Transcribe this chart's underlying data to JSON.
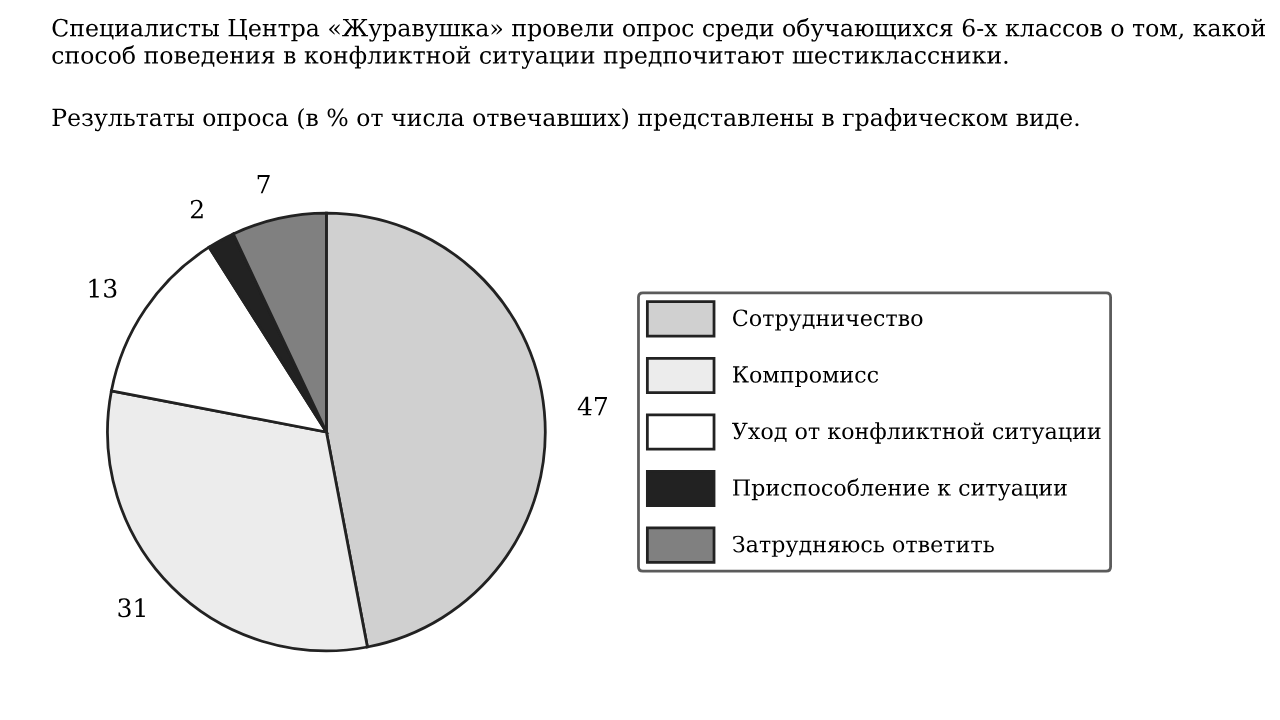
{
  "chart_data": {
    "type": "pie",
    "title": "Специалисты Центра «Журавушка» провели опрос среди обучающихся 6-х классов о том, какой способ поведения в конфликтной ситуации предпочитают шестиклассники.",
    "subtitle": "Результаты опроса (в % от числа отвечавших) представлены в графическом виде.",
    "categories": [
      "Сотрудничество",
      "Компромисс",
      "Уход от конфликтной ситуации",
      "Приспособление к ситуации",
      "Затрудняюсь ответить"
    ],
    "values": [
      47,
      31,
      13,
      2,
      7
    ],
    "colors": [
      "#d0d0d0",
      "#ececec",
      "#ffffff",
      "#222222",
      "#808080"
    ],
    "data_labels": true,
    "legend": "right"
  }
}
